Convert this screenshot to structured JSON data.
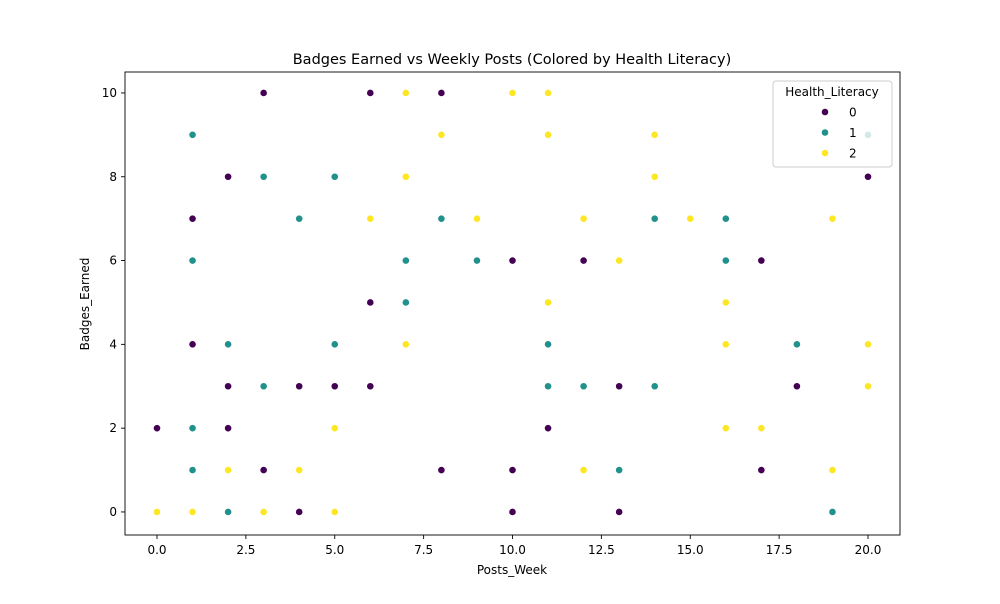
{
  "chart_data": {
    "type": "scatter",
    "title": "Badges Earned vs Weekly Posts (Colored by Health Literacy)",
    "xlabel": "Posts_Week",
    "ylabel": "Badges_Earned",
    "xlim": [
      -0.9,
      20.9
    ],
    "ylim": [
      -0.55,
      10.5
    ],
    "xticks": [
      "0.0",
      "2.5",
      "5.0",
      "7.5",
      "10.0",
      "12.5",
      "15.0",
      "17.5",
      "20.0"
    ],
    "xtick_values": [
      0,
      2.5,
      5,
      7.5,
      10,
      12.5,
      15,
      17.5,
      20
    ],
    "yticks": [
      "0",
      "2",
      "4",
      "6",
      "8",
      "10"
    ],
    "ytick_values": [
      0,
      2,
      4,
      6,
      8,
      10
    ],
    "grid": false,
    "legend": {
      "title": "Health_Literacy",
      "position": "top-right",
      "entries": [
        "0",
        "1",
        "2"
      ]
    },
    "series": [
      {
        "name": "0",
        "color": "#440154",
        "points": [
          [
            0,
            2
          ],
          [
            1,
            7
          ],
          [
            1,
            4
          ],
          [
            2,
            8
          ],
          [
            2,
            3
          ],
          [
            2,
            2
          ],
          [
            3,
            10
          ],
          [
            3,
            1
          ],
          [
            4,
            3
          ],
          [
            4,
            0
          ],
          [
            5,
            3
          ],
          [
            6,
            10
          ],
          [
            6,
            5
          ],
          [
            6,
            3
          ],
          [
            8,
            10
          ],
          [
            8,
            1
          ],
          [
            10,
            6
          ],
          [
            10,
            1
          ],
          [
            10,
            0
          ],
          [
            11,
            2
          ],
          [
            12,
            6
          ],
          [
            13,
            3
          ],
          [
            13,
            0
          ],
          [
            17,
            6
          ],
          [
            17,
            1
          ],
          [
            18,
            3
          ],
          [
            20,
            8
          ]
        ]
      },
      {
        "name": "1",
        "color": "#21918c",
        "points": [
          [
            1,
            9
          ],
          [
            1,
            6
          ],
          [
            1,
            2
          ],
          [
            1,
            1
          ],
          [
            2,
            4
          ],
          [
            2,
            0
          ],
          [
            3,
            8
          ],
          [
            3,
            3
          ],
          [
            4,
            7
          ],
          [
            5,
            8
          ],
          [
            5,
            4
          ],
          [
            7,
            6
          ],
          [
            7,
            5
          ],
          [
            8,
            7
          ],
          [
            9,
            6
          ],
          [
            11,
            4
          ],
          [
            11,
            3
          ],
          [
            12,
            3
          ],
          [
            13,
            1
          ],
          [
            14,
            7
          ],
          [
            14,
            3
          ],
          [
            16,
            7
          ],
          [
            16,
            6
          ],
          [
            18,
            4
          ],
          [
            19,
            0
          ],
          [
            20,
            9
          ]
        ]
      },
      {
        "name": "2",
        "color": "#fde725",
        "points": [
          [
            0,
            0
          ],
          [
            1,
            0
          ],
          [
            2,
            1
          ],
          [
            3,
            0
          ],
          [
            4,
            1
          ],
          [
            5,
            2
          ],
          [
            5,
            0
          ],
          [
            6,
            7
          ],
          [
            7,
            10
          ],
          [
            7,
            8
          ],
          [
            7,
            4
          ],
          [
            8,
            9
          ],
          [
            9,
            7
          ],
          [
            10,
            10
          ],
          [
            11,
            10
          ],
          [
            11,
            9
          ],
          [
            11,
            5
          ],
          [
            12,
            7
          ],
          [
            12,
            1
          ],
          [
            13,
            6
          ],
          [
            14,
            9
          ],
          [
            14,
            8
          ],
          [
            15,
            7
          ],
          [
            16,
            5
          ],
          [
            16,
            4
          ],
          [
            16,
            2
          ],
          [
            17,
            2
          ],
          [
            19,
            7
          ],
          [
            19,
            1
          ],
          [
            20,
            4
          ],
          [
            20,
            3
          ]
        ]
      }
    ]
  }
}
